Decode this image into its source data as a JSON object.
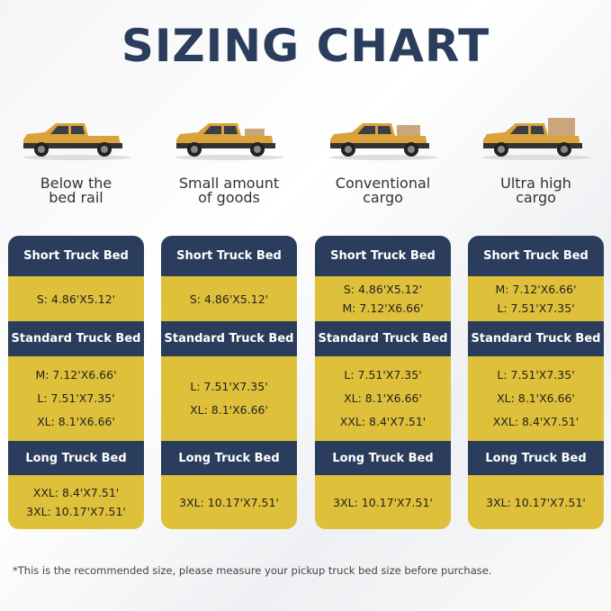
{
  "title": "SIZING CHART",
  "columns": [
    {
      "caption": [
        "Below the",
        "bed rail"
      ],
      "sections": [
        {
          "header": "Short Truck Bed",
          "sizes": [
            "S: 4.86'X5.12'"
          ]
        },
        {
          "header": "Standard Truck Bed",
          "sizes": [
            "M: 7.12'X6.66'",
            "L: 7.51'X7.35'",
            "XL: 8.1'X6.66'"
          ]
        },
        {
          "header": "Long Truck Bed",
          "sizes": [
            "XXL: 8.4'X7.51'",
            "3XL: 10.17'X7.51'"
          ]
        }
      ]
    },
    {
      "caption": [
        "Small amount",
        "of goods"
      ],
      "sections": [
        {
          "header": "Short Truck Bed",
          "sizes": [
            "S: 4.86'X5.12'"
          ]
        },
        {
          "header": "Standard Truck Bed",
          "sizes": [
            "L: 7.51'X7.35'",
            "XL: 8.1'X6.66'"
          ]
        },
        {
          "header": "Long Truck Bed",
          "sizes": [
            "3XL: 10.17'X7.51'"
          ]
        }
      ]
    },
    {
      "caption": [
        "Conventional",
        "cargo"
      ],
      "sections": [
        {
          "header": "Short Truck Bed",
          "sizes": [
            "S: 4.86'X5.12'",
            "M: 7.12'X6.66'"
          ]
        },
        {
          "header": "Standard Truck Bed",
          "sizes": [
            "L: 7.51'X7.35'",
            "XL: 8.1'X6.66'",
            "XXL: 8.4'X7.51'"
          ]
        },
        {
          "header": "Long Truck Bed",
          "sizes": [
            "3XL: 10.17'X7.51'"
          ]
        }
      ]
    },
    {
      "caption": [
        "Ultra high",
        "cargo"
      ],
      "sections": [
        {
          "header": "Short Truck Bed",
          "sizes": [
            "M: 7.12'X6.66'",
            "L: 7.51'X7.35'"
          ]
        },
        {
          "header": "Standard Truck Bed",
          "sizes": [
            "L: 7.51'X7.35'",
            "XL: 8.1'X6.66'",
            "XXL: 8.4'X7.51'"
          ]
        },
        {
          "header": "Long Truck Bed",
          "sizes": [
            "3XL: 10.17'X7.51'"
          ]
        }
      ]
    }
  ],
  "footnote": "*This is the recommended size, please measure your pickup truck bed size before purchase."
}
